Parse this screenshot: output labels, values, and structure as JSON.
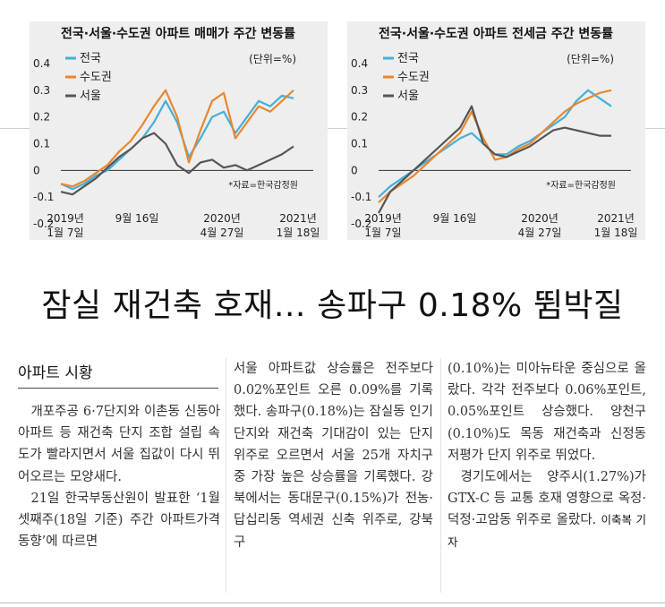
{
  "headline": "잠실 재건축 호재… 송파구 0.18% 뜀박질",
  "section_title": "아파트 시황",
  "byline": "이축복 기자",
  "columns": {
    "col1": [
      "개포주공 6·7단지와 이촌동 신동아아파트 등 재건축 단지 조합 설립 속도가 빨라지면서 서울 집값이 다시 뛰어오르는 모양새다.",
      "21일 한국부동산원이 발표한 ‘1월 셋째주(18일 기준) 주간 아파트가격 동향’에 따르면"
    ],
    "col2": [
      "서울 아파트값 상승률은 전주보다 0.02%포인트 오른 0.09%를 기록했다. 송파구(0.18%)는 잠실동 인기 단지와 재건축 기대감이 있는 단지 위주로 오르면서 서울 25개 자치구 중 가장 높은 상승률을 기록했다. 강북에서는 동대문구(0.15%)가 전농·답십리동 역세권 신축 위주로, 강북구"
    ],
    "col3": [
      "(0.10%)는 미아뉴타운 중심으로 올랐다. 각각 전주보다 0.06%포인트, 0.05%포인트 상승했다. 양천구(0.10%)도 목동 재건축과 신정동 저평가 단지 위주로 뛰었다.",
      "경기도에서는 양주시(1.27%)가 GTX-C 등 교통 호재 영향으로 옥정·덕정·고암동 위주로 올랐다."
    ]
  },
  "colors": {
    "national": "#45afd9",
    "capital_area": "#e8872e",
    "seoul": "#555555",
    "chart_bg": "#eeeeee"
  },
  "chart_data": [
    {
      "type": "line",
      "title": "전국·서울·수도권 아파트 매매가 주간 변동률",
      "unit_note": "(단위=%)",
      "source_note": "*자료=한국감정원",
      "ylim": [
        -0.2,
        0.4
      ],
      "yticks": [
        "0.4",
        "0.3",
        "0.2",
        "0.1",
        "0",
        "-0.1",
        "-0.2"
      ],
      "xtick_labels": [
        {
          "line1": "2019년",
          "line2": "1월 7일"
        },
        {
          "line1": "9월 16일",
          "line2": ""
        },
        {
          "line1": "2020년",
          "line2": "4월 27일"
        },
        {
          "line1": "2021년",
          "line2": "1월 18일"
        }
      ],
      "x": [
        0,
        0.05,
        0.1,
        0.15,
        0.2,
        0.25,
        0.3,
        0.35,
        0.4,
        0.45,
        0.5,
        0.55,
        0.6,
        0.65,
        0.7,
        0.75,
        0.8,
        0.85,
        0.9,
        0.95,
        1.0
      ],
      "series": [
        {
          "name": "전국",
          "key": "national",
          "values": [
            -0.05,
            -0.07,
            -0.05,
            -0.02,
            0.0,
            0.04,
            0.08,
            0.12,
            0.18,
            0.26,
            0.18,
            0.05,
            0.12,
            0.2,
            0.22,
            0.14,
            0.2,
            0.26,
            0.24,
            0.28,
            0.27
          ]
        },
        {
          "name": "수도권",
          "key": "capital_area",
          "values": [
            -0.05,
            -0.06,
            -0.04,
            -0.01,
            0.02,
            0.07,
            0.11,
            0.17,
            0.24,
            0.3,
            0.2,
            0.03,
            0.15,
            0.26,
            0.29,
            0.12,
            0.18,
            0.24,
            0.22,
            0.26,
            0.3
          ]
        },
        {
          "name": "서울",
          "key": "seoul",
          "values": [
            -0.08,
            -0.09,
            -0.06,
            -0.03,
            0.01,
            0.05,
            0.08,
            0.12,
            0.14,
            0.1,
            0.02,
            -0.01,
            0.03,
            0.04,
            0.01,
            0.02,
            0.0,
            0.02,
            0.04,
            0.06,
            0.09
          ]
        }
      ]
    },
    {
      "type": "line",
      "title": "전국·서울·수도권 아파트 전세금 주간 변동률",
      "unit_note": "(단위=%)",
      "source_note": "*자료=한국감정원",
      "ylim": [
        -0.2,
        0.4
      ],
      "yticks": [
        "0.4",
        "0.3",
        "0.2",
        "0.1",
        "0",
        "-0.1",
        "-0.2"
      ],
      "xtick_labels": [
        {
          "line1": "2019년",
          "line2": "1월 7일"
        },
        {
          "line1": "9월 16일",
          "line2": ""
        },
        {
          "line1": "2020년",
          "line2": "4월 27일"
        },
        {
          "line1": "2021년",
          "line2": "1월 18일"
        }
      ],
      "x": [
        0,
        0.05,
        0.1,
        0.15,
        0.2,
        0.25,
        0.3,
        0.35,
        0.4,
        0.45,
        0.5,
        0.55,
        0.6,
        0.65,
        0.7,
        0.75,
        0.8,
        0.85,
        0.9,
        0.95,
        1.0
      ],
      "series": [
        {
          "name": "전국",
          "key": "national",
          "values": [
            -0.1,
            -0.06,
            -0.03,
            0.0,
            0.03,
            0.06,
            0.09,
            0.12,
            0.14,
            0.1,
            0.06,
            0.06,
            0.09,
            0.11,
            0.14,
            0.17,
            0.2,
            0.26,
            0.3,
            0.27,
            0.24
          ]
        },
        {
          "name": "수도권",
          "key": "capital_area",
          "values": [
            -0.12,
            -0.08,
            -0.05,
            -0.02,
            0.02,
            0.06,
            0.1,
            0.14,
            0.22,
            0.12,
            0.04,
            0.05,
            0.08,
            0.1,
            0.14,
            0.18,
            0.22,
            0.25,
            0.27,
            0.29,
            0.3
          ]
        },
        {
          "name": "서울",
          "key": "seoul",
          "values": [
            -0.16,
            -0.08,
            -0.04,
            0.0,
            0.04,
            0.08,
            0.12,
            0.16,
            0.24,
            0.1,
            0.06,
            0.05,
            0.07,
            0.09,
            0.12,
            0.15,
            0.16,
            0.15,
            0.14,
            0.13,
            0.13
          ]
        }
      ]
    }
  ]
}
